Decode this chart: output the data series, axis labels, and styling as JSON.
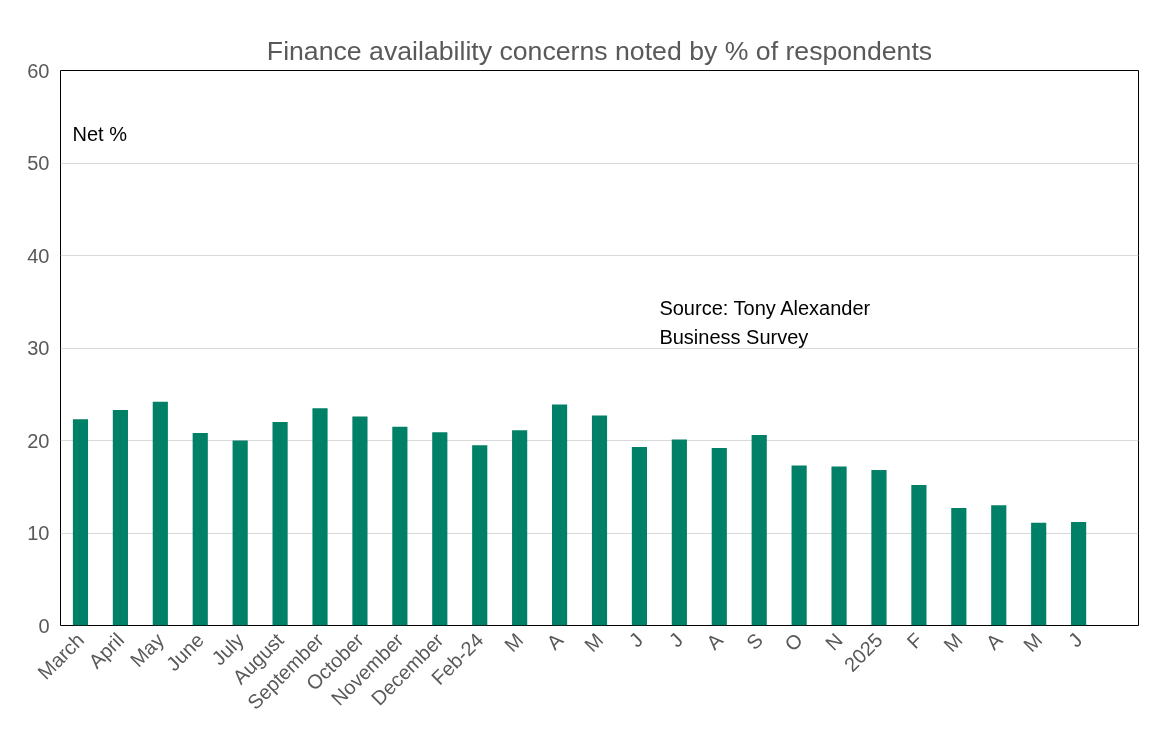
{
  "chart_data": {
    "type": "bar",
    "title": "Finance availability concerns noted by % of respondents",
    "categories": [
      "March",
      "April",
      "May",
      "June",
      "July",
      "August",
      "September",
      "October",
      "November",
      "December",
      "Feb-24",
      "M",
      "A",
      "M",
      "J",
      "J",
      "A",
      "S",
      "O",
      "N",
      "2025",
      "F",
      "M",
      "A",
      "M",
      "J"
    ],
    "values": [
      22.3,
      23.3,
      24.2,
      20.8,
      20.0,
      22.0,
      23.5,
      22.6,
      21.5,
      20.9,
      19.5,
      21.1,
      23.9,
      22.7,
      19.3,
      20.1,
      19.2,
      20.6,
      17.3,
      17.2,
      16.8,
      15.2,
      12.7,
      13.0,
      11.1,
      11.2
    ],
    "color": "#008066",
    "ylim": [
      0,
      60
    ],
    "yticks": [
      0,
      10,
      20,
      30,
      40,
      50,
      60
    ],
    "grid": "y",
    "annotations": [
      "Net %",
      "Source: Tony Alexander Business Survey"
    ]
  }
}
